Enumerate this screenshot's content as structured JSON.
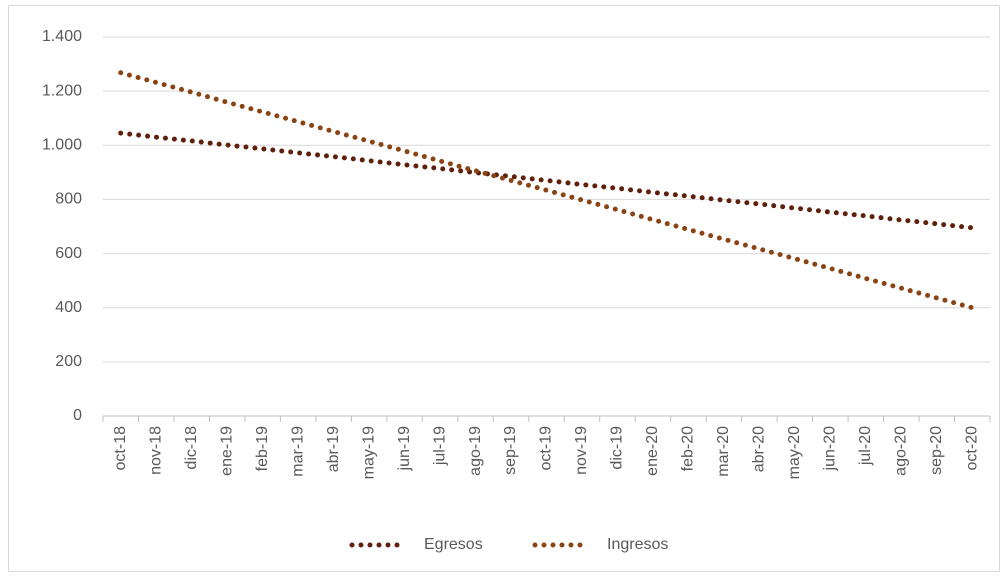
{
  "chart_data": {
    "type": "line",
    "categories": [
      "oct-18",
      "nov-18",
      "dic-18",
      "ene-19",
      "feb-19",
      "mar-19",
      "abr-19",
      "may-19",
      "jun-19",
      "jul-19",
      "ago-19",
      "sep-19",
      "oct-19",
      "nov-19",
      "dic-19",
      "ene-20",
      "feb-20",
      "mar-20",
      "abr-20",
      "may-20",
      "jun-20",
      "jul-20",
      "ago-20",
      "sep-20",
      "oct-20"
    ],
    "series": [
      {
        "name": "Egresos",
        "color": "#5e1f0b",
        "values": [
          1045,
          1030,
          1016,
          1001,
          987,
          972,
          958,
          943,
          928,
          914,
          899,
          885,
          870,
          855,
          841,
          826,
          812,
          797,
          783,
          768,
          753,
          739,
          724,
          710,
          695
        ]
      },
      {
        "name": "Ingresos",
        "color": "#8a4413",
        "values": [
          1268,
          1232,
          1196,
          1159,
          1123,
          1087,
          1051,
          1015,
          979,
          942,
          906,
          870,
          834,
          798,
          762,
          725,
          689,
          653,
          617,
          581,
          545,
          508,
          472,
          436,
          400
        ]
      }
    ],
    "ylim": [
      0,
      1400
    ],
    "yticks": [
      0,
      200,
      400,
      600,
      800,
      {
        "value": 1000,
        "label": "1.000"
      },
      {
        "value": 1200,
        "label": "1.200"
      },
      {
        "value": 1400,
        "label": "1.400"
      }
    ],
    "grid": true,
    "legend": "bottom"
  }
}
